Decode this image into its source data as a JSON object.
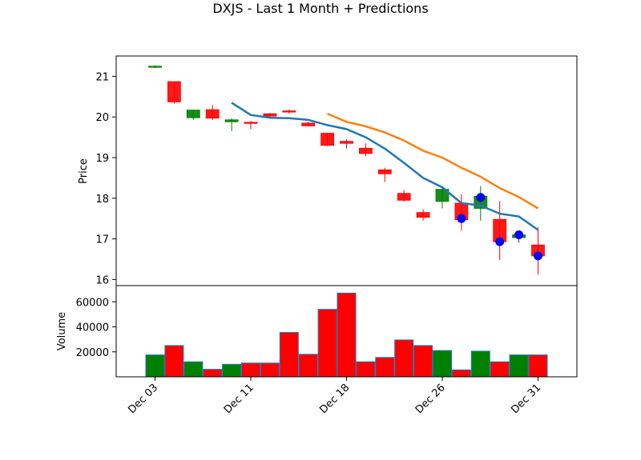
{
  "chart_data": {
    "type": "candlestick",
    "title": "DXJS - Last 1 Month + Predictions",
    "x_tick_labels": [
      "Dec 03",
      "Dec 11",
      "Dec 18",
      "Dec 26",
      "Dec 31"
    ],
    "x_tick_index": [
      0,
      5,
      10,
      15,
      20
    ],
    "price_panel": {
      "ylabel": "Price",
      "ylim": [
        15.85,
        21.5
      ],
      "yticks": [
        16,
        17,
        18,
        19,
        20,
        21
      ],
      "candles": [
        {
          "o": 21.25,
          "h": 21.27,
          "l": 21.2,
          "c": 21.25
        },
        {
          "o": 20.87,
          "h": 20.87,
          "l": 20.33,
          "c": 20.37
        },
        {
          "o": 19.98,
          "h": 20.17,
          "l": 19.93,
          "c": 20.17
        },
        {
          "o": 20.18,
          "h": 20.3,
          "l": 19.93,
          "c": 19.97
        },
        {
          "o": 19.88,
          "h": 19.97,
          "l": 19.65,
          "c": 19.93
        },
        {
          "o": 19.87,
          "h": 19.9,
          "l": 19.7,
          "c": 19.85
        },
        {
          "o": 20.08,
          "h": 20.1,
          "l": 20.0,
          "c": 20.02
        },
        {
          "o": 20.15,
          "h": 20.18,
          "l": 20.08,
          "c": 20.12
        },
        {
          "o": 19.85,
          "h": 19.88,
          "l": 19.77,
          "c": 19.78
        },
        {
          "o": 19.6,
          "h": 19.6,
          "l": 19.28,
          "c": 19.3
        },
        {
          "o": 19.4,
          "h": 19.45,
          "l": 19.22,
          "c": 19.35
        },
        {
          "o": 19.23,
          "h": 19.35,
          "l": 19.03,
          "c": 19.1
        },
        {
          "o": 18.7,
          "h": 18.75,
          "l": 18.4,
          "c": 18.6
        },
        {
          "o": 18.12,
          "h": 18.2,
          "l": 17.92,
          "c": 17.95
        },
        {
          "o": 17.65,
          "h": 17.73,
          "l": 17.45,
          "c": 17.53
        },
        {
          "o": 17.92,
          "h": 18.3,
          "l": 17.75,
          "c": 18.22
        },
        {
          "o": 17.88,
          "h": 18.1,
          "l": 17.2,
          "c": 17.47
        },
        {
          "o": 17.75,
          "h": 18.3,
          "l": 17.45,
          "c": 18.05
        },
        {
          "o": 17.48,
          "h": 17.93,
          "l": 16.48,
          "c": 16.93
        },
        {
          "o": 17.03,
          "h": 17.15,
          "l": 16.9,
          "c": 17.1
        },
        {
          "o": 16.85,
          "h": 17.28,
          "l": 16.12,
          "c": 16.58
        }
      ],
      "line_blue": {
        "start_index": 4,
        "values": [
          20.35,
          20.05,
          19.98,
          19.97,
          19.93,
          19.8,
          19.7,
          19.5,
          19.22,
          18.87,
          18.5,
          18.27,
          17.88,
          17.82,
          17.62,
          17.55,
          17.22
        ]
      },
      "line_orange": {
        "start_index": 9,
        "values": [
          20.08,
          19.88,
          19.77,
          19.62,
          19.42,
          19.17,
          19.0,
          18.75,
          18.53,
          18.25,
          18.03,
          17.75
        ]
      },
      "prediction_points": [
        {
          "index": 16,
          "value": 17.5
        },
        {
          "index": 17,
          "value": 18.02
        },
        {
          "index": 18,
          "value": 16.93
        },
        {
          "index": 19,
          "value": 17.1
        },
        {
          "index": 20,
          "value": 16.58
        }
      ]
    },
    "volume_panel": {
      "ylabel": "Volume",
      "ylim": [
        0,
        73000
      ],
      "yticks": [
        20000,
        40000,
        60000
      ],
      "values": [
        17500,
        25000,
        12000,
        6000,
        10000,
        11000,
        11000,
        35500,
        18000,
        54000,
        67000,
        12000,
        15500,
        29500,
        25000,
        21000,
        5500,
        20500,
        12000,
        17500,
        17500
      ]
    },
    "colors": {
      "up": "#008000",
      "down": "#ff0000",
      "line_blue": "#1f77b4",
      "line_orange": "#ff7f0e",
      "point": "#0000ff"
    }
  }
}
